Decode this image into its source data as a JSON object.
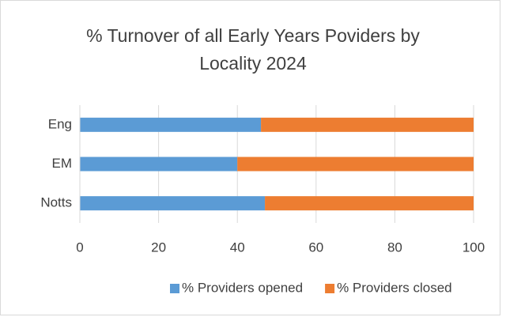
{
  "chart_data": {
    "type": "bar",
    "orientation": "horizontal",
    "stacked": true,
    "title": "% Turnover of all Early Years Poviders by Locality 2024",
    "categories": [
      "Eng",
      "EM",
      "Notts"
    ],
    "series": [
      {
        "name": "% Providers opened",
        "color": "#5b9bd5",
        "values": [
          46,
          40,
          47
        ]
      },
      {
        "name": "% Providers closed",
        "color": "#ed7d31",
        "values": [
          54,
          60,
          53
        ]
      }
    ],
    "xlim": [
      0,
      100
    ],
    "xticks": [
      0,
      20,
      40,
      60,
      80,
      100
    ],
    "grid": true,
    "legend": "bottom"
  }
}
